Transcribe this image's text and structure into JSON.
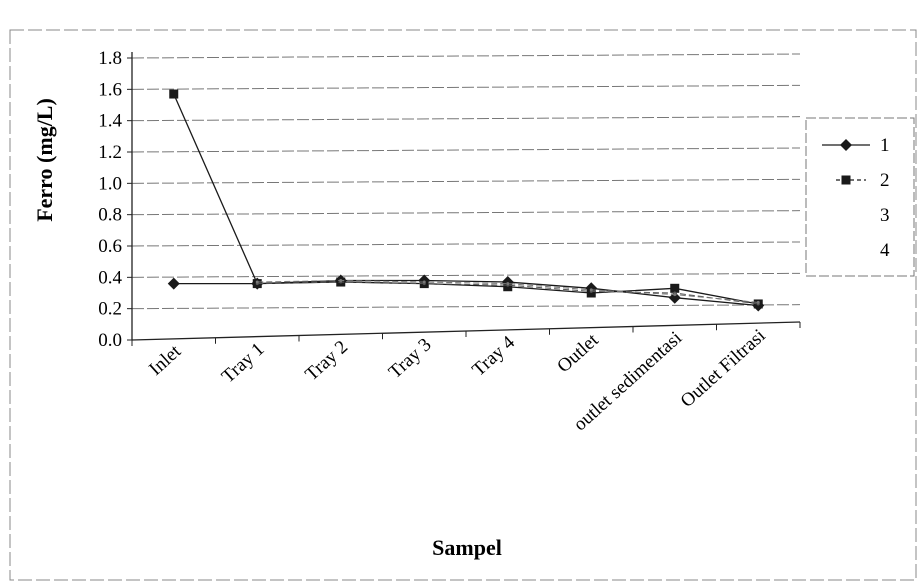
{
  "chart_data": {
    "type": "line",
    "title": "",
    "xlabel": "Sampel",
    "ylabel": "Ferro (mg/L)",
    "ylim": [
      0,
      1.8
    ],
    "ytick_labels": [
      "0.0",
      "0.2",
      "0.4",
      "0.6",
      "0.8",
      "1.0",
      "1.2",
      "1.4",
      "1.6",
      "1.8"
    ],
    "grid": true,
    "legend_position": "right",
    "categories": [
      "Inlet",
      "Tray 1",
      "Tray 2",
      "Tray 3",
      "Tray 4",
      "Outlet",
      "outlet sedimentasi",
      "Outlet Filtrasi"
    ],
    "series": [
      {
        "name": "1",
        "marker": "diamond",
        "color": "#1a1a1a",
        "values": [
          0.36,
          0.36,
          0.38,
          0.38,
          0.37,
          0.33,
          0.27,
          0.22
        ]
      },
      {
        "name": "2",
        "marker": "square",
        "color": "#1a1a1a",
        "values": [
          1.57,
          0.36,
          0.37,
          0.36,
          0.34,
          0.3,
          0.33,
          0.23
        ]
      },
      {
        "name": "3",
        "marker": "none",
        "color": "#555555",
        "values": [
          null,
          0.36,
          0.37,
          0.36,
          0.35,
          0.31,
          0.3,
          0.23
        ]
      },
      {
        "name": "4",
        "marker": "none",
        "color": "#777777",
        "values": [
          null,
          0.37,
          0.38,
          0.37,
          0.36,
          0.32,
          0.29,
          0.24
        ]
      }
    ]
  }
}
